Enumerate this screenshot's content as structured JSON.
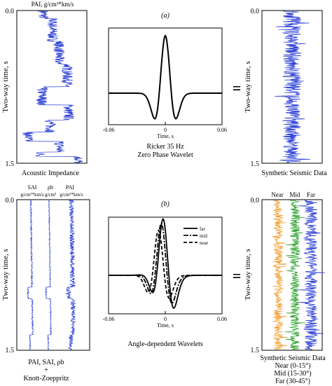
{
  "colors": {
    "trace_blue": "#2b3fd4",
    "near": "#f39c2a",
    "mid": "#2ca02c",
    "far": "#2b3fd4",
    "axis": "#000000"
  },
  "panel_a": {
    "label": "(a)",
    "impedance": {
      "top_label": "PAI, g/cm³*km/s",
      "y_axis_label": "Two-way time, s",
      "y_ticks": [
        "0.0",
        "1.5"
      ],
      "caption": "Acoustic Impedance"
    },
    "wavelet": {
      "x_ticks": [
        "-0.06",
        "0",
        "0.06"
      ],
      "x_label": "Time, s",
      "caption_line1": "Ricker 35 Hz",
      "caption_line2": "Zero Phase Wavelet"
    },
    "equals": "=",
    "seismic": {
      "y_axis_label": "Two-way time, s",
      "y_ticks": [
        "0.0",
        "1.5"
      ],
      "caption": "Synthetic Seismic Data"
    }
  },
  "panel_b": {
    "label": "(b)",
    "logs": {
      "col_labels": [
        {
          "name": "SAI",
          "unit": "g/cm³*km/s"
        },
        {
          "name": "ρb",
          "unit": "g/cm³"
        },
        {
          "name": "PAI",
          "unit": "g/cm³*km/s"
        }
      ],
      "y_axis_label": "Two-way time, s",
      "y_ticks": [
        "0.0",
        "1.5"
      ],
      "caption_line1": "PAI, SAI, ρb",
      "caption_line2": "+",
      "caption_line3": "Knott-Zoeppritz"
    },
    "wavelets": {
      "legend": [
        "far",
        "mid",
        "near"
      ],
      "x_ticks": [
        "-0.06",
        "0",
        "0.06"
      ],
      "x_label": "Time, s",
      "caption": "Angle-dependent Wavelets"
    },
    "equals": "=",
    "seismic": {
      "col_labels": [
        "Near",
        "Mid",
        "Far"
      ],
      "y_axis_label": "Two-way time, s",
      "y_ticks": [
        "0.0",
        "1.5"
      ],
      "caption_line1": "Synthetic Seismic Data",
      "caption_line2": "Near (0-15°)",
      "caption_line3": "Mid (15-30°)",
      "caption_line4": "Far (30-45°)"
    }
  }
}
